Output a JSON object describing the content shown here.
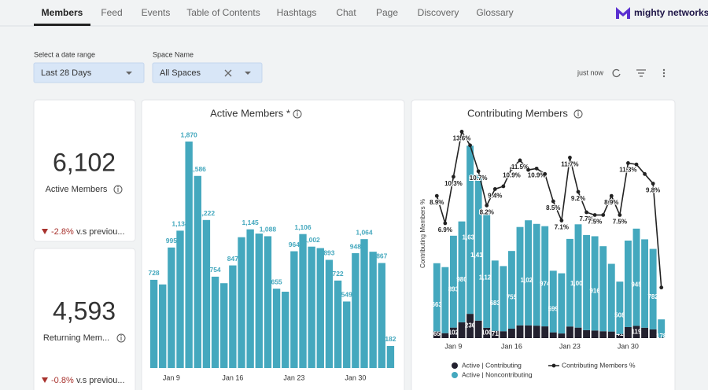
{
  "nav": {
    "tabs": [
      "Members",
      "Feed",
      "Events",
      "Table of Contents",
      "Hashtags",
      "Chat",
      "Page",
      "Discovery",
      "Glossary"
    ],
    "logo": "mighty networks"
  },
  "filters": [
    {
      "label": "Select a date range",
      "value": "Last 28 Days"
    },
    {
      "label": "Space Name",
      "value": "All Spaces"
    }
  ],
  "refresh": "just now",
  "kpis": [
    {
      "value": "6,102",
      "label": "Active Members",
      "change": "-2.8%",
      "comparison": "v.s previou..."
    },
    {
      "value": "4,593",
      "label": "Returning Mem...",
      "change": "-0.8%",
      "comparison": "v.s previou..."
    }
  ],
  "chart_data": [
    {
      "type": "bar",
      "title": "Active Members *",
      "color": "#44a8be",
      "categories": [
        null,
        null,
        "Jan 9",
        null,
        null,
        null,
        null,
        null,
        null,
        "Jan 16",
        null,
        null,
        null,
        null,
        null,
        null,
        "Jan 23",
        null,
        null,
        null,
        null,
        null,
        null,
        "Jan 30",
        null,
        null,
        null,
        null
      ],
      "values": [
        728,
        690,
        995,
        1134,
        1870,
        1586,
        1222,
        754,
        700,
        847,
        1080,
        1145,
        1110,
        1088,
        655,
        630,
        964,
        1106,
        1002,
        990,
        893,
        722,
        549,
        948,
        1064,
        960,
        867,
        182
      ],
      "value_labels": [
        "728",
        null,
        "995",
        "1,134",
        "1,870",
        "1,586",
        "1,222",
        "754",
        null,
        "847",
        null,
        "1,145",
        null,
        "1,088",
        "655",
        null,
        "964",
        "1,106",
        "1,002",
        null,
        "893",
        "722",
        "549",
        "948",
        "1,064",
        null,
        "867",
        "182"
      ],
      "ylim": [
        0,
        2000
      ]
    },
    {
      "type": "combo",
      "title": "Contributing Members",
      "y2_label": "Contributing Members %",
      "categories": [
        null,
        null,
        "Jan 9",
        null,
        null,
        null,
        null,
        null,
        null,
        "Jan 16",
        null,
        null,
        null,
        null,
        null,
        null,
        "Jan 23",
        null,
        null,
        null,
        null,
        null,
        null,
        "Jan 30",
        null,
        null,
        null,
        null
      ],
      "ylim": [
        0,
        2140
      ],
      "y2lim": [
        -1.5,
        14.6
      ],
      "series": [
        {
          "name": "Active | Contributing",
          "color": "#23212f",
          "values": [
            65,
            48,
            102,
            154,
            236,
            170,
            100,
            71,
            67,
            92,
            124,
            124,
            121,
            114,
            56,
            45,
            113,
            102,
            77,
            74,
            67,
            64,
            41,
            107,
            119,
            101,
            85,
            4
          ],
          "value_labels": [
            "65",
            null,
            "102",
            null,
            "236",
            null,
            "100",
            "71",
            null,
            null,
            null,
            null,
            null,
            null,
            null,
            null,
            null,
            null,
            null,
            null,
            null,
            null,
            "41",
            null,
            "119",
            null,
            null,
            null
          ]
        },
        {
          "name": "Active | Noncontributing",
          "color": "#44a8be",
          "values": [
            663,
            642,
            893,
            980,
            1634,
            1416,
            1122,
            683,
            633,
            755,
            956,
            1021,
            989,
            974,
            599,
            585,
            851,
            1004,
            925,
            916,
            826,
            658,
            508,
            841,
            945,
            859,
            782,
            178
          ],
          "value_labels": [
            "663",
            null,
            "893",
            "980",
            "1,634",
            "1,416",
            "1,122",
            "683",
            null,
            "755",
            null,
            "1,021",
            null,
            "974",
            "599",
            null,
            null,
            "1,004",
            null,
            "916",
            null,
            null,
            "508",
            null,
            "945",
            null,
            "782",
            "178"
          ]
        },
        {
          "name": "Contributing Members %",
          "color": "#222222",
          "type": "line",
          "axis": "y2",
          "values": [
            8.9,
            6.9,
            10.3,
            13.6,
            12.6,
            10.7,
            8.2,
            9.4,
            9.6,
            10.9,
            11.5,
            10.8,
            10.9,
            10.5,
            8.5,
            7.1,
            11.7,
            9.2,
            7.7,
            7.5,
            7.5,
            8.9,
            7.5,
            11.3,
            11.2,
            10.5,
            9.8,
            2.2
          ],
          "value_labels": [
            "8.9%",
            "6.9%",
            "10.3%",
            "13.6%",
            null,
            "10.7%",
            "8.2%",
            "9.4%",
            null,
            "10.9%",
            "11.5%",
            null,
            "10.9%",
            null,
            "8.5%",
            "7.1%",
            "11.7%",
            "9.2%",
            "7.7%",
            "7.5%",
            null,
            "8.9%",
            "7.5%",
            "11.3%",
            null,
            null,
            "9.8%",
            null
          ]
        }
      ]
    }
  ]
}
